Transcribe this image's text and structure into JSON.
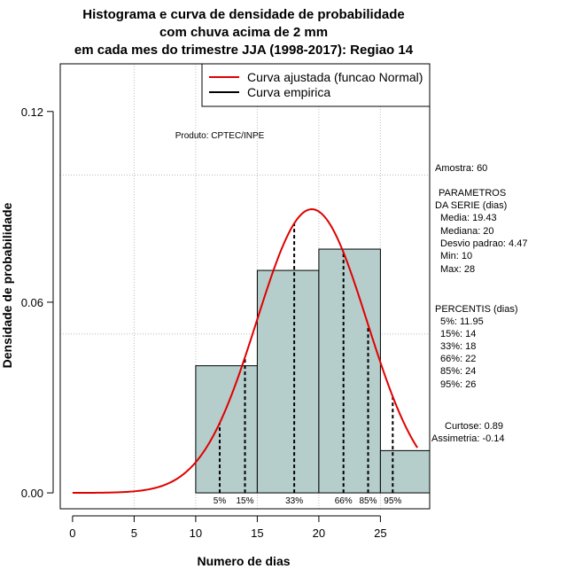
{
  "chart_data": {
    "type": "bar",
    "title": [
      "Histograma e curva de densidade de probabilidade",
      "com chuva acima de 2 mm",
      "em cada mes do trimestre JJA (1998-2017): Regiao 14"
    ],
    "xlabel": "Numero de dias",
    "ylabel": "Densidade de probabilidade",
    "xlim": [
      -1,
      29
    ],
    "ylim": [
      -0.005,
      0.135
    ],
    "xticks": [
      0,
      5,
      10,
      15,
      20,
      25
    ],
    "yticks": [
      0.0,
      0.06,
      0.12
    ],
    "ytick_labels": [
      "0.00",
      "0.06",
      "0.12"
    ],
    "grid": true,
    "grid_x": [
      5,
      10,
      15,
      20,
      25
    ],
    "grid_y": [
      0.05,
      0.1
    ],
    "bins": [
      {
        "x0": 10,
        "x1": 15,
        "density": 0.04
      },
      {
        "x0": 15,
        "x1": 20,
        "density": 0.07
      },
      {
        "x0": 20,
        "x1": 25,
        "density": 0.0767
      },
      {
        "x0": 25,
        "x1": 30,
        "density": 0.0133
      }
    ],
    "bar_color": "#b5cdcb",
    "series": [
      {
        "name": "Curva ajustada (funcao Normal)",
        "color": "#e00000",
        "distribution": "normal",
        "mean": 19.43,
        "sd": 4.47,
        "x_range": [
          0,
          28
        ]
      },
      {
        "name": "Curva empirica",
        "color": "#000000"
      }
    ],
    "legend": "top-right",
    "percentiles": [
      {
        "label": "5%",
        "x": 11.95
      },
      {
        "label": "15%",
        "x": 14
      },
      {
        "label": "33%",
        "x": 18
      },
      {
        "label": "66%",
        "x": 22
      },
      {
        "label": "85%",
        "x": 24
      },
      {
        "label": "95%",
        "x": 26
      }
    ],
    "annotation": "Produto: CPTEC/INPE"
  },
  "stats_panel": {
    "amostra": "Amostra: 60",
    "params_lines": [
      "PARAMETROS",
      "DA SERIE (dias)",
      "Media: 19.43",
      "Mediana: 20",
      "Desvio padrao: 4.47",
      "Min: 10",
      "Max: 28"
    ],
    "percentis_lines": [
      "PERCENTIS (dias)",
      "5%: 11.95",
      "15%: 14",
      "33%: 18",
      "66%: 22",
      "85%: 24",
      "95%: 26"
    ],
    "curtose": "Curtose: 0.89",
    "assimetria": "Assimetria: -0.14"
  }
}
